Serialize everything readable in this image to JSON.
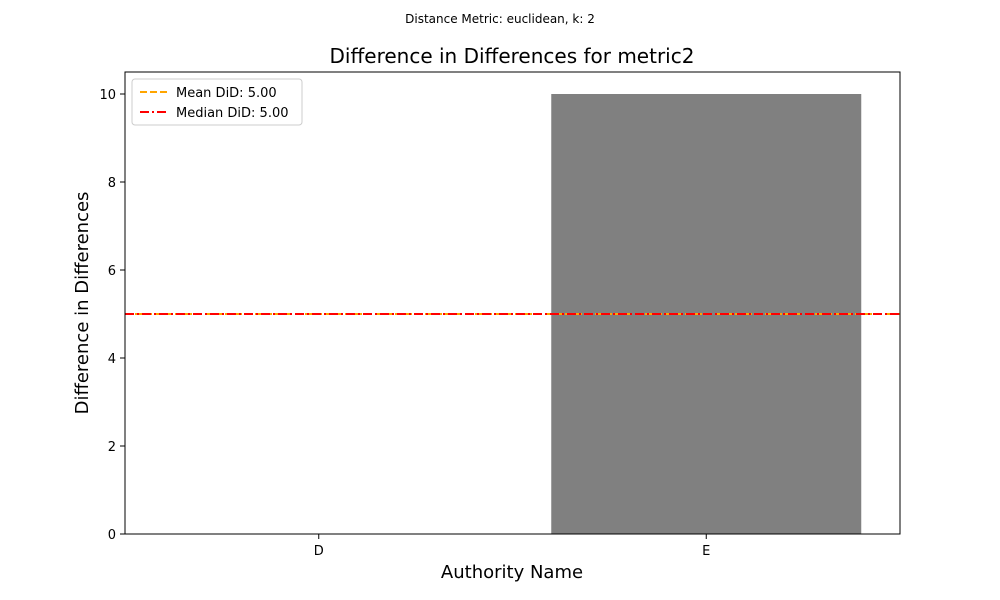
{
  "chart_data": {
    "type": "bar",
    "suptitle": "Distance Metric: euclidean, k: 2",
    "title": "Difference in Differences for metric2",
    "xlabel": "Authority Name",
    "ylabel": "Difference in Differences",
    "categories": [
      "D",
      "E"
    ],
    "values": [
      0,
      10
    ],
    "bar_color": "#808080",
    "ylim": [
      0,
      10.5
    ],
    "yticks": [
      0,
      2,
      4,
      6,
      8,
      10
    ],
    "grid": false,
    "legend_position": "top-left",
    "reference_lines": [
      {
        "label": "Mean DiD: 5.00",
        "value": 5.0,
        "color": "#ffa500",
        "style": "dashed"
      },
      {
        "label": "Median DiD: 5.00",
        "value": 5.0,
        "color": "#ff0000",
        "style": "dashdot"
      }
    ]
  }
}
